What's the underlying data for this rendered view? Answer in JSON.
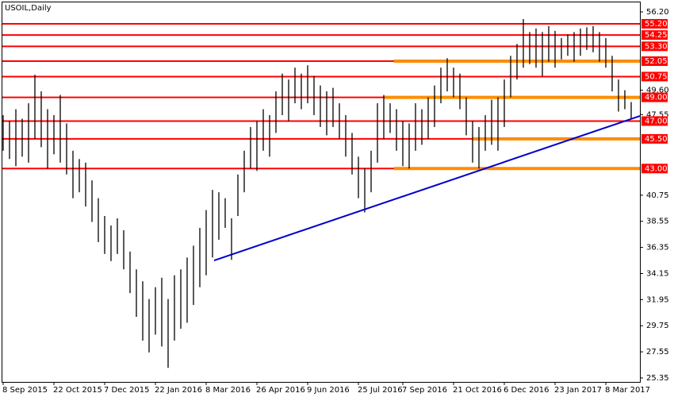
{
  "chart_data": {
    "type": "ohlc",
    "title": "USOIL,Daily",
    "categories": [
      "8 Sep 2015",
      null,
      null,
      null,
      null,
      null,
      null,
      null,
      "22 Oct 2015",
      null,
      null,
      null,
      null,
      null,
      null,
      null,
      "7 Dec 2015",
      null,
      null,
      null,
      null,
      null,
      null,
      null,
      "22 Jan 2016",
      null,
      null,
      null,
      null,
      null,
      null,
      null,
      "8 Mar 2016",
      null,
      null,
      null,
      null,
      null,
      null,
      null,
      "26 Apr 2016",
      null,
      null,
      null,
      null,
      null,
      null,
      null,
      "9 Jun 2016",
      null,
      null,
      null,
      null,
      null,
      null,
      null,
      "25 Jul 2016",
      null,
      null,
      null,
      null,
      null,
      null,
      "7 Sep 2016",
      null,
      null,
      null,
      null,
      null,
      null,
      null,
      "21 Oct 2016",
      null,
      null,
      null,
      null,
      null,
      null,
      null,
      "6 Dec 2016",
      null,
      null,
      null,
      null,
      null,
      null,
      null,
      "23 Jan 2017",
      null,
      null,
      null,
      null,
      null,
      null,
      null,
      "8 Mar 2017",
      null,
      null,
      null,
      null
    ],
    "highs": [
      47.5,
      47.0,
      48.0,
      47.2,
      48.5,
      50.9,
      49.5,
      48.0,
      47.5,
      49.2,
      46.8,
      44.5,
      43.8,
      43.5,
      42.0,
      40.5,
      39.0,
      38.2,
      38.8,
      37.8,
      36.0,
      34.5,
      33.5,
      32.0,
      33.0,
      33.8,
      32.0,
      34.0,
      34.5,
      35.5,
      36.5,
      38.0,
      39.5,
      41.2,
      41.0,
      40.5,
      38.8,
      42.5,
      44.5,
      46.5,
      47.0,
      48.0,
      47.5,
      49.5,
      51.0,
      50.5,
      51.5,
      51.0,
      51.7,
      50.8,
      50.0,
      49.5,
      49.8,
      48.5,
      47.5,
      46.0,
      44.0,
      43.0,
      44.5,
      48.5,
      49.2,
      48.5,
      48.0,
      47.0,
      46.8,
      48.5,
      48.0,
      49.0,
      50.0,
      51.5,
      52.3,
      51.5,
      51.0,
      49.0,
      47.0,
      46.5,
      47.5,
      48.8,
      49.0,
      50.5,
      52.5,
      53.5,
      55.6,
      54.5,
      54.8,
      54.5,
      55.0,
      54.6,
      54.0,
      54.3,
      54.5,
      54.8,
      54.9,
      55.0,
      54.5,
      54.0,
      52.5,
      50.5,
      49.6,
      48.6
    ],
    "lows": [
      44.5,
      43.8,
      43.2,
      44.0,
      43.5,
      45.5,
      44.8,
      43.0,
      44.2,
      43.5,
      42.5,
      40.5,
      41.0,
      39.8,
      38.5,
      36.8,
      35.8,
      35.2,
      35.8,
      34.5,
      32.5,
      30.5,
      28.5,
      27.5,
      29.0,
      28.0,
      26.2,
      28.5,
      29.5,
      30.0,
      31.5,
      33.0,
      34.0,
      35.5,
      37.0,
      38.0,
      35.3,
      39.0,
      41.0,
      43.0,
      42.8,
      44.5,
      44.0,
      46.0,
      47.5,
      47.0,
      48.5,
      48.0,
      48.5,
      47.5,
      46.5,
      45.8,
      46.5,
      45.5,
      44.0,
      42.5,
      40.5,
      39.3,
      41.0,
      43.5,
      45.5,
      46.0,
      44.5,
      43.2,
      43.0,
      44.5,
      45.0,
      45.5,
      46.5,
      48.5,
      49.5,
      49.0,
      48.0,
      45.8,
      43.5,
      43.0,
      44.5,
      45.0,
      44.5,
      46.5,
      49.0,
      50.5,
      51.5,
      51.8,
      51.5,
      50.8,
      52.0,
      51.5,
      52.2,
      52.5,
      52.0,
      52.5,
      53.0,
      52.8,
      52.0,
      51.5,
      49.5,
      47.8,
      48.0,
      47.2
    ],
    "color": "#000000",
    "ylim": [
      25.35,
      56.2
    ],
    "yticks": [
      {
        "value": 25.35,
        "label": "25.35"
      },
      {
        "value": 27.55,
        "label": "27.55"
      },
      {
        "value": 29.75,
        "label": "29.75"
      },
      {
        "value": 31.95,
        "label": "31.95"
      },
      {
        "value": 34.15,
        "label": "34.15"
      },
      {
        "value": 36.35,
        "label": "36.35"
      },
      {
        "value": 38.55,
        "label": "38.55"
      },
      {
        "value": 40.75,
        "label": "40.75"
      },
      {
        "value": 47.55,
        "label": "47.55"
      },
      {
        "value": 49.6,
        "label": "49.60"
      },
      {
        "value": 56.2,
        "label": "56.20"
      }
    ],
    "levels": [
      {
        "value": 55.2,
        "label": "55.20",
        "color": "#ff0000"
      },
      {
        "value": 54.25,
        "label": "54.25",
        "color": "#ff0000"
      },
      {
        "value": 53.3,
        "label": "53.30",
        "color": "#ff0000"
      },
      {
        "value": 52.05,
        "label": "52.05",
        "color": "#ff0000",
        "highlight": true
      },
      {
        "value": 50.75,
        "label": "50.75",
        "color": "#ff0000"
      },
      {
        "value": 49,
        "label": "49.00",
        "color": "#ff0000",
        "highlight": true
      },
      {
        "value": 47,
        "label": "47.00",
        "color": "#ff0000"
      },
      {
        "value": 45.5,
        "label": "45.50",
        "color": "#ff0000",
        "highlight": true
      },
      {
        "value": 43,
        "label": "43.00",
        "color": "#ff0000",
        "highlight": true
      }
    ],
    "highlight_color": "#ff8c00",
    "trendline": {
      "color": "#0000cc",
      "start_category": "8 Mar 2016",
      "values": [
        35.25,
        47.43
      ]
    }
  }
}
